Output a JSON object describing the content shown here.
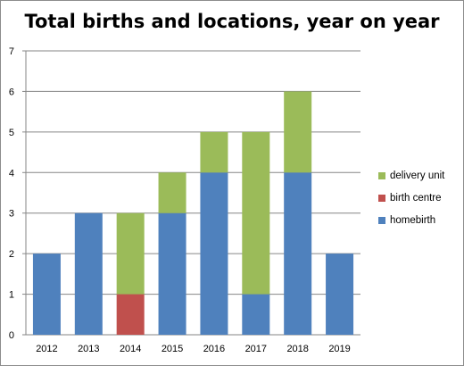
{
  "chart_data": {
    "type": "bar",
    "stacked": true,
    "title": "Total births and locations, year on year",
    "xlabel": "",
    "ylabel": "",
    "categories": [
      "2012",
      "2013",
      "2014",
      "2015",
      "2016",
      "2017",
      "2018",
      "2019"
    ],
    "series": [
      {
        "name": "homebirth",
        "color": "#4f81bd",
        "values": [
          2,
          3,
          0,
          3,
          4,
          1,
          4,
          2
        ]
      },
      {
        "name": "birth centre",
        "color": "#c0504d",
        "values": [
          0,
          0,
          1,
          0,
          0,
          0,
          0,
          0
        ]
      },
      {
        "name": "delivery unit",
        "color": "#9bbb59",
        "values": [
          0,
          0,
          2,
          1,
          1,
          4,
          2,
          0
        ]
      }
    ],
    "ylim": [
      0,
      7
    ],
    "yticks": [
      "0",
      "1",
      "2",
      "3",
      "4",
      "5",
      "6",
      "7"
    ],
    "grid": true,
    "legend_position": "right",
    "legend_order": [
      "delivery unit",
      "birth centre",
      "homebirth"
    ]
  }
}
